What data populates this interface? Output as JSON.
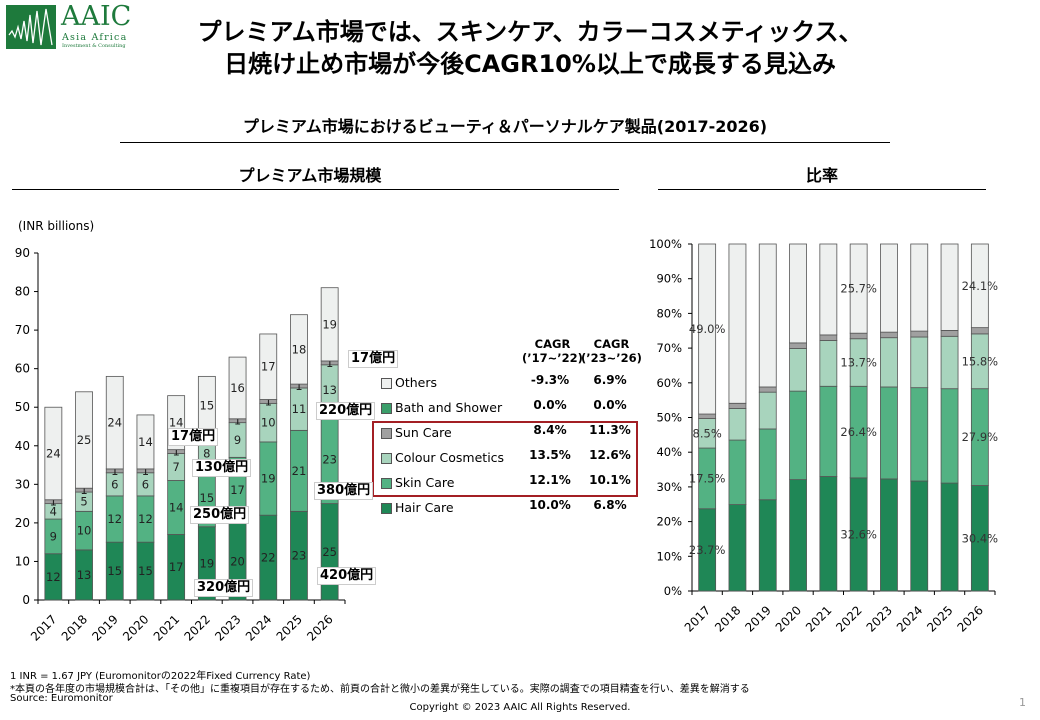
{
  "logo": {
    "brand": "AAIC",
    "line1": "Asia Africa",
    "line2": "Investment & Consulting"
  },
  "header": {
    "title_line1": "プレミアム市場では、スキンケア、カラーコスメティックス、",
    "title_line2": "日焼け止め市場が今後CAGR10%以上で成長する見込み",
    "subtitle": "プレミアム市場におけるビューティ＆パーソナルケア製品(2017-2026)"
  },
  "sections": {
    "left": "プレミアム市場規模",
    "right": "比率"
  },
  "colors": {
    "Hair Care": "#1f8756",
    "Skin Care": "#53b283",
    "Colour Cosmetics": "#a8d4bd",
    "Sun Care": "#a0a0a0",
    "Bath and Shower": "#3a9e6a",
    "Others": "#eef0ef",
    "callout_border": "#a31f24"
  },
  "legend": [
    {
      "name": "Others",
      "cagr1": "-9.3%",
      "cagr2": "6.9%"
    },
    {
      "name": "Bath and Shower",
      "cagr1": "0.0%",
      "cagr2": "0.0%"
    },
    {
      "name": "Sun Care",
      "cagr1": "8.4%",
      "cagr2": "11.3%"
    },
    {
      "name": "Colour Cosmetics",
      "cagr1": "13.5%",
      "cagr2": "12.6%"
    },
    {
      "name": "Skin Care",
      "cagr1": "12.1%",
      "cagr2": "10.1%"
    },
    {
      "name": "Hair Care",
      "cagr1": "10.0%",
      "cagr2": "6.8%"
    }
  ],
  "cagr_headers": [
    {
      "line1": "CAGR",
      "line2": "(’17~’22)"
    },
    {
      "line1": "CAGR",
      "line2": "(’23~’26)"
    }
  ],
  "callouts": [
    "17億円",
    "130億円",
    "250億円",
    "320億円",
    "17億円",
    "220億円",
    "380億円",
    "420億円"
  ],
  "chart_data": [
    {
      "type": "bar",
      "stacked": true,
      "title": "プレミアム市場規模",
      "ylabel": "(INR billions)",
      "xlabel": "",
      "ylim": [
        0,
        90
      ],
      "yticks": [
        0,
        10,
        20,
        30,
        40,
        50,
        60,
        70,
        80,
        90
      ],
      "categories": [
        "2017",
        "2018",
        "2019",
        "2020",
        "2021",
        "2022",
        "2023",
        "2024",
        "2025",
        "2026"
      ],
      "series": [
        {
          "name": "Hair Care",
          "values": [
            12,
            13,
            15,
            15,
            17,
            19,
            20,
            22,
            23,
            25
          ]
        },
        {
          "name": "Skin Care",
          "values": [
            9,
            10,
            12,
            12,
            14,
            15,
            17,
            19,
            21,
            23
          ]
        },
        {
          "name": "Colour Cosmetics",
          "values": [
            4,
            5,
            6,
            6,
            7,
            8,
            9,
            10,
            11,
            13
          ]
        },
        {
          "name": "Sun Care",
          "values": [
            1,
            1,
            1,
            1,
            1,
            1,
            1,
            1,
            1,
            1
          ]
        },
        {
          "name": "Bath and Shower",
          "values": [
            0,
            0,
            0,
            0,
            0,
            0,
            0,
            0,
            0,
            0
          ]
        },
        {
          "name": "Others",
          "values": [
            24,
            25,
            24,
            14,
            14,
            15,
            16,
            17,
            18,
            19
          ]
        }
      ],
      "grid": false,
      "legend": "right"
    },
    {
      "type": "bar",
      "stacked": true,
      "percent": true,
      "title": "比率",
      "ylim": [
        0,
        100
      ],
      "yticks": [
        "0%",
        "10%",
        "20%",
        "30%",
        "40%",
        "50%",
        "60%",
        "70%",
        "80%",
        "90%",
        "100%"
      ],
      "categories": [
        "2017",
        "2018",
        "2019",
        "2020",
        "2021",
        "2022",
        "2023",
        "2024",
        "2025",
        "2026"
      ],
      "series": [
        {
          "name": "Hair Care",
          "values": [
            23.7,
            24.9,
            26.3,
            32.1,
            33.0,
            32.6,
            32.3,
            31.7,
            31.1,
            30.4
          ]
        },
        {
          "name": "Skin Care",
          "values": [
            17.5,
            18.6,
            20.4,
            25.5,
            26.0,
            26.4,
            26.5,
            26.9,
            27.2,
            27.9
          ]
        },
        {
          "name": "Colour Cosmetics",
          "values": [
            8.5,
            9.1,
            10.6,
            12.3,
            13.2,
            13.7,
            14.2,
            14.6,
            15.1,
            15.8
          ]
        },
        {
          "name": "Sun Care",
          "values": [
            1.3,
            1.5,
            1.5,
            1.6,
            1.6,
            1.6,
            1.6,
            1.7,
            1.7,
            1.8
          ]
        },
        {
          "name": "Bath and Shower",
          "values": [
            0,
            0,
            0,
            0,
            0,
            0,
            0,
            0,
            0,
            0
          ]
        },
        {
          "name": "Others",
          "values": [
            49.0,
            45.9,
            41.2,
            28.5,
            26.2,
            25.7,
            25.4,
            25.1,
            24.9,
            24.1
          ]
        }
      ],
      "data_labels": {
        "2017": {
          "Hair Care": "23.7%",
          "Skin Care": "17.5%",
          "Colour Cosmetics": "8.5%",
          "Others": "49.0%"
        },
        "2022": {
          "Hair Care": "32.6%",
          "Skin Care": "26.4%",
          "Colour Cosmetics": "13.7%",
          "Others": "25.7%"
        },
        "2026": {
          "Hair Care": "30.4%",
          "Skin Care": "27.9%",
          "Colour Cosmetics": "15.8%",
          "Others": "24.1%"
        }
      },
      "grid": false
    }
  ],
  "footer": {
    "note1": "1 INR = 1.67 JPY (Euromonitorの2022年Fixed Currency Rate)",
    "note2": "*本頁の各年度の市場規模合計は、「その他」に重複項目が存在するため、前頁の合計と微小の差異が発生している。実際の調査での項目精査を行い、差異を解消する",
    "source": "Source: Euromonitor",
    "copyright": "Copyright © 2023 AAIC All Rights Reserved.",
    "page": "1"
  }
}
